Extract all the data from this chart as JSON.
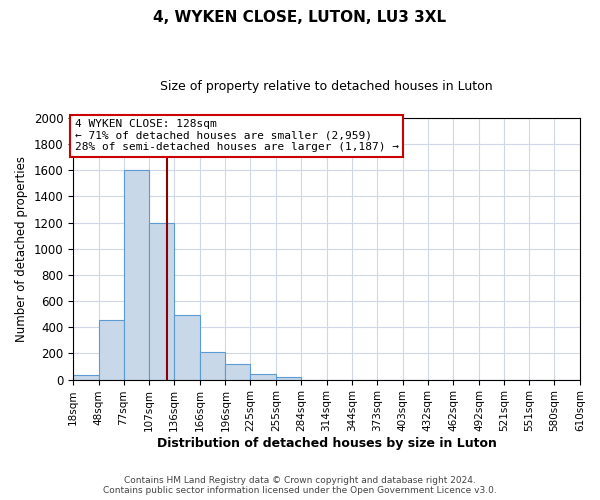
{
  "title": "4, WYKEN CLOSE, LUTON, LU3 3XL",
  "subtitle": "Size of property relative to detached houses in Luton",
  "xlabel": "Distribution of detached houses by size in Luton",
  "ylabel": "Number of detached properties",
  "bin_labels": [
    "18sqm",
    "48sqm",
    "77sqm",
    "107sqm",
    "136sqm",
    "166sqm",
    "196sqm",
    "225sqm",
    "255sqm",
    "284sqm",
    "314sqm",
    "344sqm",
    "373sqm",
    "403sqm",
    "432sqm",
    "462sqm",
    "492sqm",
    "521sqm",
    "551sqm",
    "580sqm",
    "610sqm"
  ],
  "bar_values": [
    35,
    455,
    1600,
    1200,
    490,
    210,
    120,
    45,
    20,
    0,
    0,
    0,
    0,
    0,
    0,
    0,
    0,
    0,
    0,
    0
  ],
  "bin_edges": [
    18,
    48,
    77,
    107,
    136,
    166,
    196,
    225,
    255,
    284,
    314,
    344,
    373,
    403,
    432,
    462,
    492,
    521,
    551,
    580,
    610
  ],
  "bar_color": "#c8d8e8",
  "bar_edge_color": "#5b9bd5",
  "vline_x": 128,
  "vline_color": "#8b0000",
  "ylim": [
    0,
    2000
  ],
  "annotation_title": "4 WYKEN CLOSE: 128sqm",
  "annotation_line1": "← 71% of detached houses are smaller (2,959)",
  "annotation_line2": "28% of semi-detached houses are larger (1,187) →",
  "annotation_box_color": "#ffffff",
  "annotation_box_edge": "#cc0000",
  "footer1": "Contains HM Land Registry data © Crown copyright and database right 2024.",
  "footer2": "Contains public sector information licensed under the Open Government Licence v3.0.",
  "background_color": "#ffffff",
  "grid_color": "#d0d8e8"
}
